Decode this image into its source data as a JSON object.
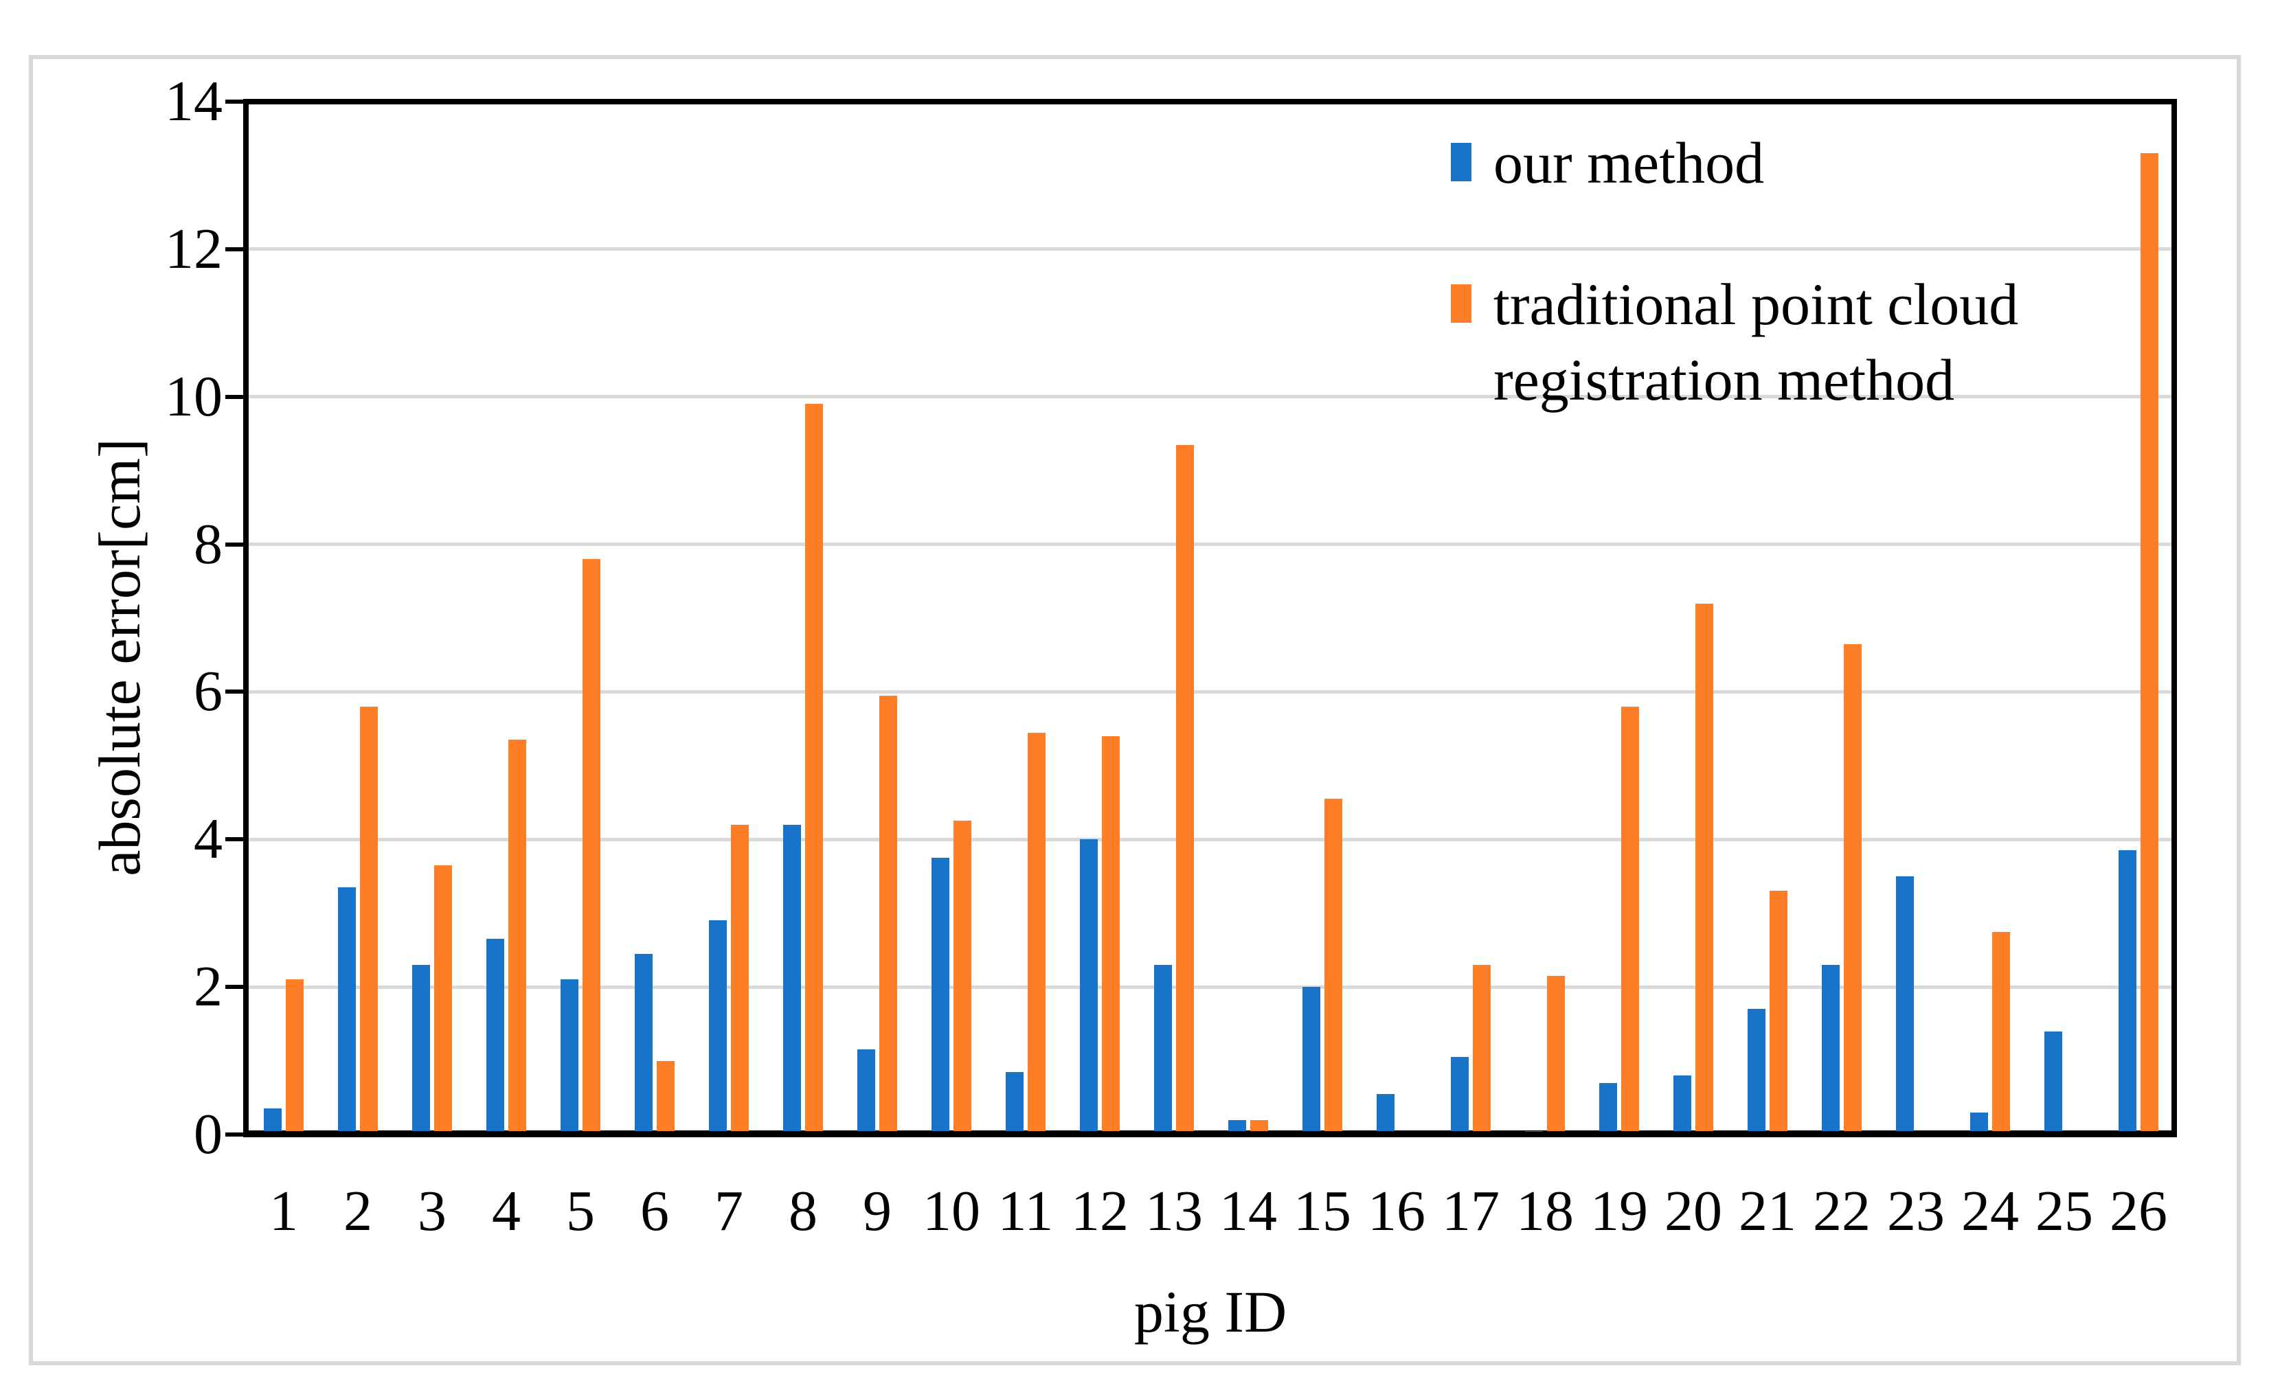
{
  "chart_data": {
    "type": "bar",
    "title": "",
    "xlabel": "pig ID",
    "ylabel": "absolute error[cm]",
    "categories": [
      "1",
      "2",
      "3",
      "4",
      "5",
      "6",
      "7",
      "8",
      "9",
      "10",
      "11",
      "12",
      "13",
      "14",
      "15",
      "16",
      "17",
      "18",
      "19",
      "20",
      "21",
      "22",
      "23",
      "24",
      "25",
      "26"
    ],
    "series": [
      {
        "name": "our method",
        "color": "#1874C8",
        "values": [
          0.35,
          3.35,
          2.3,
          2.65,
          2.1,
          2.45,
          2.9,
          4.2,
          1.15,
          3.75,
          0.85,
          4.0,
          2.3,
          0.2,
          2.0,
          0.55,
          1.05,
          0.05,
          0.7,
          0.8,
          1.7,
          2.3,
          3.5,
          0.3,
          1.4,
          3.85
        ]
      },
      {
        "name": "traditional point cloud registration method",
        "color": "#FD7E26",
        "values": [
          2.1,
          5.8,
          3.65,
          5.35,
          7.8,
          1.0,
          4.2,
          9.9,
          5.95,
          4.25,
          5.45,
          5.4,
          9.35,
          0.2,
          4.55,
          0,
          2.3,
          2.15,
          5.8,
          7.2,
          3.3,
          6.65,
          0,
          2.75,
          0,
          13.3
        ]
      }
    ],
    "ylim": [
      0,
      14
    ],
    "yticks": [
      0,
      2,
      4,
      6,
      8,
      10,
      12,
      14
    ],
    "gridlines": [
      2,
      4,
      6,
      8,
      10,
      12
    ],
    "grid": "on",
    "legend_position": "top-right",
    "colors": {
      "grid": "#d9d9d9",
      "axis": "#000000",
      "figure_border": "#d9d9d9"
    }
  }
}
